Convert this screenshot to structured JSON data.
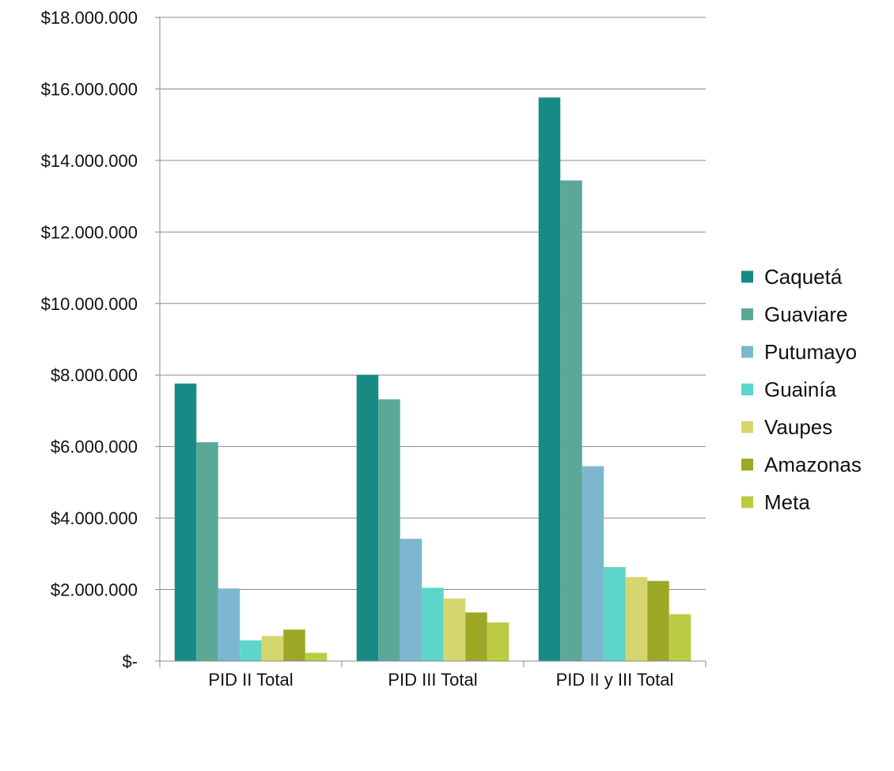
{
  "chart_data": {
    "type": "bar",
    "categories": [
      "PID II Total",
      "PID III Total",
      "PID II y III Total"
    ],
    "series": [
      {
        "name": "Caquetá",
        "color": "#178A85",
        "values": [
          7760000,
          8000000,
          15760000
        ]
      },
      {
        "name": "Guaviare",
        "color": "#5BA898",
        "values": [
          6120000,
          7320000,
          13440000
        ]
      },
      {
        "name": "Putumayo",
        "color": "#7DB7CF",
        "values": [
          2030000,
          3420000,
          5450000
        ]
      },
      {
        "name": "Guainía",
        "color": "#5ED5CA",
        "values": [
          580000,
          2050000,
          2630000
        ]
      },
      {
        "name": "Vaupes",
        "color": "#D5D66E",
        "values": [
          700000,
          1750000,
          2350000
        ]
      },
      {
        "name": "Amazonas",
        "color": "#9CA826",
        "values": [
          880000,
          1360000,
          2240000
        ]
      },
      {
        "name": "Meta",
        "color": "#BBCB42",
        "values": [
          230000,
          1080000,
          1310000
        ]
      }
    ],
    "y_ticks": [
      {
        "value": 0,
        "label": "$-"
      },
      {
        "value": 2000000,
        "label": "$2.000.000"
      },
      {
        "value": 4000000,
        "label": "$4.000.000"
      },
      {
        "value": 6000000,
        "label": "$6.000.000"
      },
      {
        "value": 8000000,
        "label": "$8.000.000"
      },
      {
        "value": 10000000,
        "label": "$10.000.000"
      },
      {
        "value": 12000000,
        "label": "$12.000.000"
      },
      {
        "value": 14000000,
        "label": "$14.000.000"
      },
      {
        "value": 16000000,
        "label": "$16.000.000"
      },
      {
        "value": 18000000,
        "label": "$18.000.000"
      }
    ],
    "ylim": [
      0,
      18000000
    ],
    "grid": true,
    "legend_position": "right",
    "title": "",
    "xlabel": "",
    "ylabel": ""
  }
}
